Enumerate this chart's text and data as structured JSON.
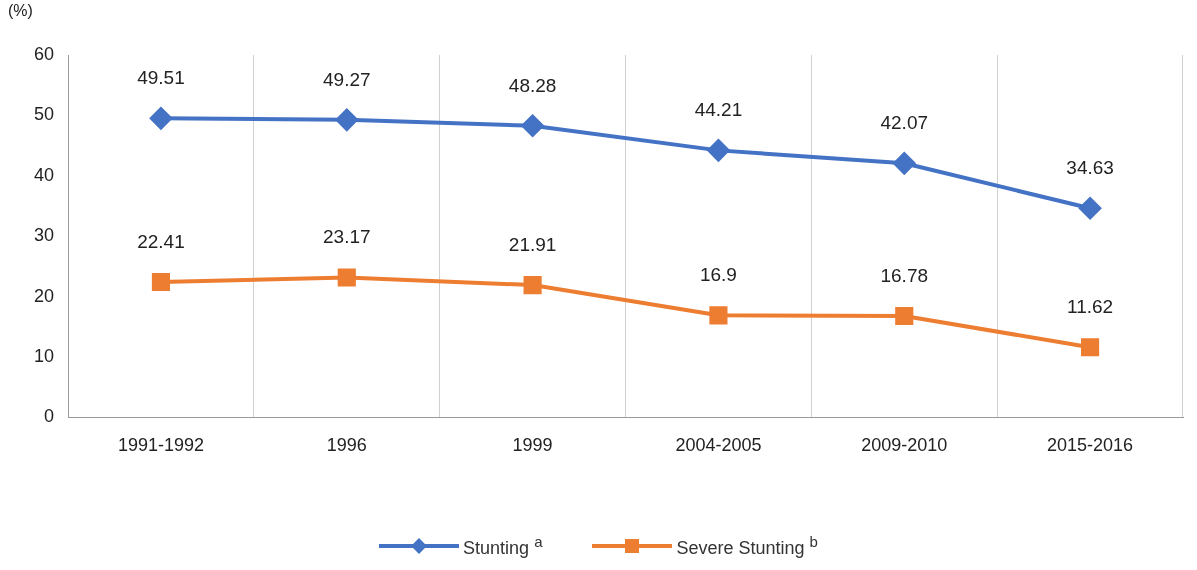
{
  "chart_data": {
    "type": "line",
    "ylabel": "(%)",
    "categories": [
      "1991-1992",
      "1996",
      "1999",
      "2004-2005",
      "2009-2010",
      "2015-2016"
    ],
    "series": [
      {
        "name": "Stunting $^{a}$",
        "color": "#4472c4",
        "marker": "diamond",
        "values": [
          49.51,
          49.27,
          48.28,
          44.21,
          42.07,
          34.63
        ]
      },
      {
        "name": "Severe Stunting $^{b}$",
        "color": "#ed7d31",
        "marker": "square",
        "values": [
          22.41,
          23.17,
          21.91,
          16.9,
          16.78,
          11.62
        ]
      }
    ],
    "ylim": [
      0,
      60
    ],
    "yticks": [
      0,
      10,
      20,
      30,
      40,
      50,
      60
    ],
    "grid": "x",
    "legend": "bottom",
    "data_labels": true
  }
}
